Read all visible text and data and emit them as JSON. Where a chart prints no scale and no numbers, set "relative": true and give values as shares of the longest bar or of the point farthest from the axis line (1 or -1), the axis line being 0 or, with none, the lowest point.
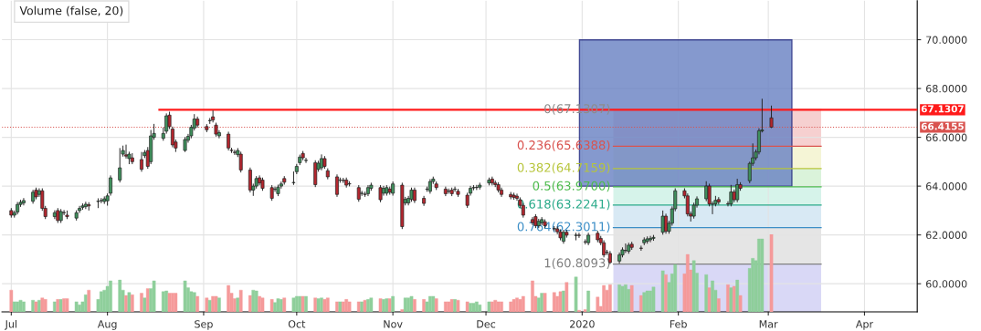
{
  "chart_data": [
    {
      "type": "candlestick",
      "x": [
        "2019-07-01",
        "2019-07-02",
        "2019-07-03",
        "2019-07-04",
        "2019-07-05",
        "2019-07-08",
        "2019-07-09",
        "2019-07-10",
        "2019-07-11",
        "2019-07-12",
        "2019-07-15",
        "2019-07-16",
        "2019-07-17",
        "2019-07-18",
        "2019-07-19",
        "2019-07-22",
        "2019-07-23",
        "2019-07-24",
        "2019-07-25",
        "2019-07-26",
        "2019-07-29",
        "2019-07-30",
        "2019-07-31",
        "2019-08-01",
        "2019-08-02",
        "2019-08-05",
        "2019-08-06",
        "2019-08-07",
        "2019-08-08",
        "2019-08-09",
        "2019-08-12",
        "2019-08-13",
        "2019-08-14",
        "2019-08-15",
        "2019-08-16",
        "2019-08-19",
        "2019-08-20",
        "2019-08-21",
        "2019-08-22",
        "2019-08-23",
        "2019-08-26",
        "2019-08-27",
        "2019-08-28",
        "2019-08-29",
        "2019-08-30",
        "2019-09-02",
        "2019-09-03",
        "2019-09-04",
        "2019-09-05",
        "2019-09-06",
        "2019-09-09",
        "2019-09-10",
        "2019-09-11",
        "2019-09-12",
        "2019-09-13",
        "2019-09-16",
        "2019-09-17",
        "2019-09-18",
        "2019-09-19",
        "2019-09-20",
        "2019-09-23",
        "2019-09-24",
        "2019-09-25",
        "2019-09-26",
        "2019-09-27",
        "2019-09-30",
        "2019-10-01",
        "2019-10-02",
        "2019-10-03",
        "2019-10-04",
        "2019-10-07",
        "2019-10-08",
        "2019-10-09",
        "2019-10-10",
        "2019-10-11",
        "2019-10-14",
        "2019-10-15",
        "2019-10-16",
        "2019-10-17",
        "2019-10-18",
        "2019-10-21",
        "2019-10-22",
        "2019-10-23",
        "2019-10-24",
        "2019-10-25",
        "2019-10-28",
        "2019-10-29",
        "2019-10-30",
        "2019-10-31",
        "2019-11-01",
        "2019-11-04",
        "2019-11-05",
        "2019-11-06",
        "2019-11-07",
        "2019-11-08",
        "2019-11-11",
        "2019-11-12",
        "2019-11-13",
        "2019-11-14",
        "2019-11-15",
        "2019-11-18",
        "2019-11-19",
        "2019-11-20",
        "2019-11-21",
        "2019-11-22",
        "2019-11-25",
        "2019-11-26",
        "2019-11-27",
        "2019-11-28",
        "2019-11-29",
        "2019-12-02",
        "2019-12-03",
        "2019-12-04",
        "2019-12-05",
        "2019-12-06",
        "2019-12-09",
        "2019-12-10",
        "2019-12-11",
        "2019-12-12",
        "2019-12-13",
        "2019-12-16",
        "2019-12-17",
        "2019-12-18",
        "2019-12-19",
        "2019-12-20",
        "2019-12-23",
        "2019-12-24",
        "2019-12-25",
        "2019-12-26",
        "2019-12-27",
        "2019-12-30",
        "2019-12-31",
        "2020-01-02",
        "2020-01-03",
        "2020-01-06",
        "2020-01-07",
        "2020-01-08",
        "2020-01-09",
        "2020-01-10",
        "2020-01-13",
        "2020-01-14",
        "2020-01-15",
        "2020-01-16",
        "2020-01-17",
        "2020-01-20",
        "2020-01-21",
        "2020-01-22",
        "2020-01-23",
        "2020-01-24",
        "2020-01-27",
        "2020-01-28",
        "2020-01-29",
        "2020-01-30",
        "2020-01-31",
        "2020-02-03",
        "2020-02-04",
        "2020-02-05",
        "2020-02-06",
        "2020-02-07",
        "2020-02-10",
        "2020-02-11",
        "2020-02-12",
        "2020-02-13",
        "2020-02-14",
        "2020-02-17",
        "2020-02-18",
        "2020-02-19",
        "2020-02-20",
        "2020-02-21",
        "2020-02-24",
        "2020-02-25",
        "2020-02-26",
        "2020-02-27",
        "2020-02-28",
        "2020-03-02"
      ],
      "ohlc": [
        [
          63.0,
          63.1,
          62.71,
          62.81
        ],
        [
          62.81,
          63.0,
          62.71,
          62.91
        ],
        [
          62.94,
          63.35,
          62.84,
          63.25
        ],
        [
          63.25,
          63.44,
          63.15,
          63.34
        ],
        [
          63.31,
          63.51,
          63.21,
          63.41
        ],
        [
          63.38,
          63.85,
          63.28,
          63.75
        ],
        [
          63.84,
          63.94,
          63.46,
          63.56
        ],
        [
          63.66,
          63.91,
          63.56,
          63.81
        ],
        [
          63.81,
          63.91,
          62.99,
          63.09
        ],
        [
          63.09,
          63.19,
          62.65,
          62.75
        ],
        [
          62.75,
          63.01,
          62.65,
          62.91
        ],
        [
          63.0,
          63.1,
          62.49,
          62.59
        ],
        [
          62.59,
          63.06,
          62.49,
          62.96
        ],
        [
          62.92,
          63.02,
          62.81,
          62.91
        ],
        [
          62.81,
          63.0,
          62.65,
          62.75
        ],
        [
          62.69,
          63.01,
          62.59,
          62.91
        ],
        [
          63.0,
          63.19,
          62.9,
          63.09
        ],
        [
          63.13,
          63.29,
          63.03,
          63.19
        ],
        [
          63.16,
          63.36,
          63.06,
          63.26
        ],
        [
          63.24,
          63.34,
          63.0,
          63.19
        ],
        [
          63.37,
          63.5,
          63.1,
          63.38
        ],
        [
          63.4,
          63.51,
          63.3,
          63.41
        ],
        [
          63.37,
          63.58,
          63.27,
          63.48
        ],
        [
          63.4,
          63.7,
          63.2,
          63.6
        ],
        [
          63.71,
          64.44,
          63.61,
          64.34
        ],
        [
          64.25,
          65.56,
          64.15,
          64.75
        ],
        [
          65.31,
          65.66,
          65.21,
          65.46
        ],
        [
          65.28,
          65.7,
          65.13,
          65.23
        ],
        [
          65.13,
          65.41,
          64.9,
          65.31
        ],
        [
          65.16,
          65.35,
          64.9,
          65.0
        ],
        [
          65.09,
          65.4,
          64.59,
          64.69
        ],
        [
          65.25,
          65.48,
          65.15,
          65.38
        ],
        [
          65.46,
          65.6,
          64.71,
          64.81
        ],
        [
          65.0,
          66.3,
          64.9,
          66.06
        ],
        [
          66.0,
          66.55,
          65.9,
          66.16
        ],
        [
          65.96,
          66.4,
          65.86,
          66.16
        ],
        [
          66.25,
          66.98,
          66.15,
          66.88
        ],
        [
          66.91,
          67.05,
          66.34,
          66.44
        ],
        [
          66.34,
          66.44,
          65.59,
          65.69
        ],
        [
          65.81,
          65.91,
          65.4,
          65.56
        ],
        [
          65.46,
          66.01,
          65.4,
          65.91
        ],
        [
          65.88,
          66.14,
          65.78,
          66.04
        ],
        [
          66.06,
          66.51,
          65.96,
          66.41
        ],
        [
          66.38,
          66.95,
          66.28,
          66.75
        ],
        [
          66.75,
          66.85,
          66.4,
          66.5
        ],
        [
          66.44,
          66.54,
          66.21,
          66.31
        ],
        [
          66.68,
          66.79,
          66.55,
          66.69
        ],
        [
          66.84,
          67.1,
          66.61,
          66.71
        ],
        [
          66.5,
          66.6,
          66.03,
          66.13
        ],
        [
          66.06,
          66.29,
          65.96,
          66.19
        ],
        [
          66.13,
          66.23,
          65.46,
          65.56
        ],
        [
          65.47,
          65.57,
          65.36,
          65.46
        ],
        [
          65.39,
          65.49,
          65.28,
          65.38
        ],
        [
          65.29,
          65.56,
          65.19,
          65.46
        ],
        [
          65.31,
          65.41,
          64.56,
          64.66
        ],
        [
          64.66,
          64.76,
          63.74,
          63.84
        ],
        [
          63.84,
          64.1,
          63.6,
          64.0
        ],
        [
          64.0,
          64.41,
          63.9,
          64.31
        ],
        [
          64.34,
          64.44,
          64.03,
          64.13
        ],
        [
          64.25,
          64.35,
          63.81,
          63.91
        ],
        [
          63.94,
          64.04,
          63.4,
          63.5
        ],
        [
          63.87,
          63.98,
          63.77,
          63.88
        ],
        [
          63.69,
          64.06,
          63.59,
          63.96
        ],
        [
          64.0,
          64.19,
          63.9,
          64.09
        ],
        [
          64.31,
          64.41,
          64.06,
          64.16
        ],
        [
          64.14,
          64.6,
          64.05,
          64.15
        ],
        [
          64.59,
          64.91,
          64.49,
          64.81
        ],
        [
          64.96,
          65.29,
          64.86,
          65.19
        ],
        [
          65.34,
          65.44,
          65.06,
          65.16
        ],
        [
          65.05,
          65.16,
          64.95,
          65.06
        ],
        [
          64.96,
          65.06,
          63.96,
          64.06
        ],
        [
          64.69,
          65.04,
          64.59,
          64.94
        ],
        [
          64.75,
          65.3,
          64.65,
          65.13
        ],
        [
          65.13,
          65.23,
          64.71,
          64.81
        ],
        [
          64.63,
          64.73,
          64.28,
          64.38
        ],
        [
          64.38,
          64.48,
          63.56,
          63.66
        ],
        [
          64.24,
          64.35,
          64.14,
          64.25
        ],
        [
          64.24,
          64.34,
          64.13,
          64.23
        ],
        [
          64.25,
          64.35,
          63.94,
          64.04
        ],
        [
          64.1,
          64.2,
          63.99,
          64.09
        ],
        [
          63.94,
          64.04,
          63.36,
          63.46
        ],
        [
          63.7,
          63.81,
          63.6,
          63.71
        ],
        [
          63.67,
          63.77,
          63.56,
          63.66
        ],
        [
          63.69,
          64.04,
          63.59,
          63.94
        ],
        [
          63.91,
          64.14,
          63.81,
          64.04
        ],
        [
          63.94,
          64.04,
          63.34,
          63.44
        ],
        [
          63.71,
          64.01,
          63.61,
          63.91
        ],
        [
          63.71,
          64.04,
          63.61,
          63.94
        ],
        [
          63.88,
          63.98,
          63.65,
          63.75
        ],
        [
          63.71,
          64.19,
          63.61,
          64.09
        ],
        [
          64.04,
          64.14,
          62.24,
          62.34
        ],
        [
          63.31,
          63.56,
          63.21,
          63.46
        ],
        [
          63.31,
          63.6,
          63.21,
          63.5
        ],
        [
          63.46,
          63.94,
          63.36,
          63.84
        ],
        [
          63.84,
          63.94,
          63.31,
          63.41
        ],
        [
          63.5,
          63.6,
          63.19,
          63.29
        ],
        [
          63.87,
          63.98,
          63.77,
          63.88
        ],
        [
          63.79,
          64.29,
          63.69,
          64.19
        ],
        [
          64.19,
          64.39,
          64.09,
          64.29
        ],
        [
          64.09,
          64.19,
          63.84,
          63.94
        ],
        [
          63.88,
          63.98,
          63.59,
          63.69
        ],
        [
          63.8,
          63.9,
          63.69,
          63.79
        ],
        [
          63.84,
          63.94,
          63.59,
          63.69
        ],
        [
          63.87,
          63.98,
          63.77,
          63.88
        ],
        [
          63.79,
          63.89,
          63.56,
          63.66
        ],
        [
          63.63,
          63.73,
          63.11,
          63.21
        ],
        [
          63.71,
          64.01,
          63.61,
          63.91
        ],
        [
          63.93,
          64.04,
          63.83,
          63.94
        ],
        [
          63.94,
          64.05,
          63.84,
          63.95
        ],
        [
          63.96,
          64.14,
          63.86,
          64.04
        ],
        [
          64.13,
          64.35,
          64.03,
          64.25
        ],
        [
          64.29,
          64.39,
          64.03,
          64.13
        ],
        [
          64.13,
          64.23,
          63.96,
          64.06
        ],
        [
          64.06,
          64.16,
          63.74,
          63.84
        ],
        [
          63.84,
          63.94,
          63.56,
          63.66
        ],
        [
          63.66,
          63.76,
          63.46,
          63.56
        ],
        [
          63.63,
          63.73,
          63.44,
          63.54
        ],
        [
          63.59,
          63.69,
          63.4,
          63.5
        ],
        [
          63.44,
          63.54,
          63.11,
          63.21
        ],
        [
          63.21,
          63.31,
          62.71,
          62.81
        ],
        [
          62.63,
          62.73,
          62.4,
          62.5
        ],
        [
          62.75,
          62.85,
          62.28,
          62.38
        ],
        [
          62.38,
          62.66,
          62.28,
          62.56
        ],
        [
          62.5,
          62.73,
          62.4,
          62.63
        ],
        [
          62.54,
          62.64,
          62.28,
          62.38
        ],
        [
          62.26,
          62.36,
          62.15,
          62.25
        ],
        [
          62.25,
          62.35,
          62.03,
          62.13
        ],
        [
          62.13,
          62.23,
          61.78,
          61.88
        ],
        [
          61.74,
          62.21,
          61.64,
          62.11
        ],
        [
          62.11,
          62.21,
          61.89,
          61.99
        ],
        [
          61.98,
          62.09,
          61.78,
          61.99
        ],
        [
          61.99,
          62.09,
          61.88,
          61.98
        ],
        [
          61.72,
          61.82,
          61.61,
          61.71
        ],
        [
          61.68,
          62.09,
          61.58,
          61.99
        ],
        [
          62.07,
          62.17,
          61.7,
          61.8
        ],
        [
          61.86,
          61.96,
          61.58,
          61.68
        ],
        [
          61.68,
          61.78,
          61.08,
          61.18
        ],
        [
          61.29,
          61.39,
          61.18,
          61.28
        ],
        [
          61.24,
          61.34,
          60.81,
          60.87
        ],
        [
          60.93,
          61.28,
          60.83,
          61.18
        ],
        [
          61.18,
          61.49,
          61.08,
          61.39
        ],
        [
          61.36,
          61.65,
          61.26,
          61.37
        ],
        [
          61.33,
          61.68,
          61.23,
          61.58
        ],
        [
          61.62,
          61.72,
          61.39,
          61.49
        ],
        [
          61.46,
          61.56,
          61.35,
          61.45
        ],
        [
          61.68,
          61.9,
          61.58,
          61.8
        ],
        [
          61.74,
          61.94,
          61.64,
          61.84
        ],
        [
          61.8,
          61.96,
          61.7,
          61.86
        ],
        [
          61.86,
          62.0,
          61.76,
          61.9
        ],
        [
          62.11,
          63.0,
          62.01,
          62.77
        ],
        [
          62.77,
          62.87,
          62.05,
          62.15
        ],
        [
          62.15,
          62.58,
          62.05,
          62.48
        ],
        [
          62.48,
          63.17,
          62.38,
          63.07
        ],
        [
          63.07,
          63.91,
          62.97,
          63.81
        ],
        [
          63.81,
          63.91,
          63.5,
          63.6
        ],
        [
          63.6,
          63.7,
          62.76,
          62.86
        ],
        [
          62.86,
          62.96,
          62.55,
          62.77
        ],
        [
          62.77,
          63.32,
          62.67,
          63.22
        ],
        [
          63.22,
          63.58,
          63.12,
          63.48
        ],
        [
          63.48,
          64.2,
          63.38,
          64.0
        ],
        [
          64.0,
          64.1,
          63.17,
          63.27
        ],
        [
          63.26,
          63.37,
          62.85,
          63.27
        ],
        [
          63.27,
          63.6,
          63.17,
          63.42
        ],
        [
          63.45,
          63.55,
          63.25,
          63.35
        ],
        [
          63.28,
          63.38,
          63.17,
          63.27
        ],
        [
          63.27,
          64.05,
          63.17,
          63.76
        ],
        [
          63.76,
          63.86,
          63.34,
          63.44
        ],
        [
          63.44,
          64.3,
          63.34,
          64.06
        ],
        [
          64.06,
          64.16,
          63.81,
          63.91
        ],
        [
          64.22,
          65.0,
          64.12,
          64.93
        ],
        [
          64.93,
          65.75,
          64.83,
          65.16
        ],
        [
          65.16,
          65.5,
          65.06,
          65.4
        ],
        [
          65.4,
          66.37,
          65.3,
          66.27
        ],
        [
          66.26,
          67.58,
          66.2,
          66.3
        ],
        [
          66.8,
          67.3,
          66.38,
          66.4155
        ]
      ],
      "colors": [
        "#b3262e",
        "#3f8f5c",
        "#3f8f5c",
        "#3f8f5c",
        "#3f8f5c",
        "#3f8f5c",
        "#b3262e",
        "#3f8f5c",
        "#b3262e",
        "#b3262e",
        "#3f8f5c",
        "#b3262e",
        "#3f8f5c",
        "#b3262e",
        "#b3262e",
        "#3f8f5c",
        "#3f8f5c",
        "#3f8f5c",
        "#3f8f5c",
        "#b3262e",
        "#3f8f5c",
        "#3f8f5c",
        "#3f8f5c",
        "#3f8f5c",
        "#3f8f5c",
        "#3f8f5c",
        "#3f8f5c",
        "#b3262e",
        "#3f8f5c",
        "#b3262e",
        "#b3262e",
        "#3f8f5c",
        "#b3262e",
        "#3f8f5c",
        "#3f8f5c",
        "#3f8f5c",
        "#3f8f5c",
        "#b3262e",
        "#b3262e",
        "#b3262e",
        "#3f8f5c",
        "#3f8f5c",
        "#3f8f5c",
        "#3f8f5c",
        "#b3262e",
        "#b3262e",
        "#3f8f5c",
        "#b3262e",
        "#b3262e",
        "#3f8f5c",
        "#b3262e",
        "#b3262e",
        "#b3262e",
        "#3f8f5c",
        "#b3262e",
        "#b3262e",
        "#3f8f5c",
        "#3f8f5c",
        "#b3262e",
        "#b3262e",
        "#b3262e",
        "#3f8f5c",
        "#3f8f5c",
        "#3f8f5c",
        "#b3262e",
        "#3f8f5c",
        "#3f8f5c",
        "#3f8f5c",
        "#b3262e",
        "#3f8f5c",
        "#b3262e",
        "#3f8f5c",
        "#3f8f5c",
        "#b3262e",
        "#b3262e",
        "#b3262e",
        "#3f8f5c",
        "#b3262e",
        "#b3262e",
        "#b3262e",
        "#b3262e",
        "#3f8f5c",
        "#b3262e",
        "#3f8f5c",
        "#3f8f5c",
        "#b3262e",
        "#3f8f5c",
        "#3f8f5c",
        "#b3262e",
        "#3f8f5c",
        "#b3262e",
        "#3f8f5c",
        "#3f8f5c",
        "#3f8f5c",
        "#b3262e",
        "#b3262e",
        "#3f8f5c",
        "#3f8f5c",
        "#3f8f5c",
        "#b3262e",
        "#b3262e",
        "#b3262e",
        "#b3262e",
        "#3f8f5c",
        "#b3262e",
        "#b3262e",
        "#3f8f5c",
        "#3f8f5c",
        "#3f8f5c",
        "#3f8f5c",
        "#3f8f5c",
        "#b3262e",
        "#b3262e",
        "#b3262e",
        "#b3262e",
        "#b3262e",
        "#b3262e",
        "#b3262e",
        "#b3262e",
        "#b3262e",
        "#b3262e",
        "#b3262e",
        "#3f8f5c",
        "#3f8f5c",
        "#b3262e",
        "#b3262e",
        "#b3262e",
        "#b3262e",
        "#3f8f5c",
        "#b3262e",
        "#3f8f5c",
        "#b3262e",
        "#b3262e",
        "#3f8f5c",
        "#b3262e",
        "#b3262e",
        "#b3262e",
        "#b3262e",
        "#b3262e",
        "#3f8f5c",
        "#3f8f5c",
        "#3f8f5c",
        "#3f8f5c",
        "#b3262e",
        "#b3262e",
        "#3f8f5c",
        "#3f8f5c",
        "#3f8f5c",
        "#3f8f5c",
        "#3f8f5c",
        "#b3262e",
        "#3f8f5c",
        "#3f8f5c",
        "#3f8f5c",
        "#b3262e",
        "#b3262e",
        "#b3262e",
        "#3f8f5c",
        "#3f8f5c",
        "#3f8f5c",
        "#b3262e",
        "#3f8f5c",
        "#3f8f5c",
        "#b3262e",
        "#b3262e",
        "#3f8f5c",
        "#b3262e",
        "#3f8f5c",
        "#b3262e",
        "#3f8f5c",
        "#3f8f5c",
        "#3f8f5c",
        "#3f8f5c",
        "#3f8f5c",
        "#b3262e"
      ],
      "xlim": [
        "2019-06-28",
        "2020-04-18"
      ],
      "xticks": [
        {
          "value": "2019-07-01",
          "label": "Jul"
        },
        {
          "value": "2019-08-01",
          "label": "Aug"
        },
        {
          "value": "2019-09-01",
          "label": "Sep"
        },
        {
          "value": "2019-10-01",
          "label": "Oct"
        },
        {
          "value": "2019-11-01",
          "label": "Nov"
        },
        {
          "value": "2019-12-01",
          "label": "Dec"
        },
        {
          "value": "2020-01-01",
          "label": "2020"
        },
        {
          "value": "2020-02-01",
          "label": "Feb"
        },
        {
          "value": "2020-03-01",
          "label": "Mar"
        },
        {
          "value": "2020-04-01",
          "label": "Apr"
        }
      ],
      "ylim": [
        58.85,
        71.6
      ],
      "yticks": [
        {
          "value": 60,
          "label": "60.0000"
        },
        {
          "value": 62,
          "label": "62.0000"
        },
        {
          "value": 64,
          "label": "64.0000"
        },
        {
          "value": 66,
          "label": "66.0000"
        },
        {
          "value": 68,
          "label": "68.0000"
        },
        {
          "value": 70,
          "label": "70.0000"
        }
      ],
      "grid": true,
      "ref_lines": [
        {
          "axis": "y",
          "value": 67.1307,
          "label": "67.1307",
          "color": "#ff1a1a",
          "line_style": "solid"
        },
        {
          "axis": "y",
          "value": 66.4155,
          "label": "66.4155",
          "color": "#d9534f",
          "line_style": "dotted"
        },
        {
          "axis": "y",
          "value": 67.1307,
          "label": "0(67.1307)",
          "color": "#8c8c8c",
          "line_style": "solid"
        },
        {
          "axis": "y",
          "value": 65.6388,
          "label": "0.236(65.6388)",
          "color": "#d9534f",
          "line_style": "solid"
        },
        {
          "axis": "y",
          "value": 64.7159,
          "label": "0.382(64.7159)",
          "color": "#b7c53a",
          "line_style": "solid"
        },
        {
          "axis": "y",
          "value": 63.97,
          "label": "0.5(63.9700)",
          "color": "#4cbb4c",
          "line_style": "solid"
        },
        {
          "axis": "y",
          "value": 63.2241,
          "label": "0.618(63.2241)",
          "color": "#2aaa8a",
          "line_style": "solid"
        },
        {
          "axis": "y",
          "value": 62.3011,
          "label": "0.764(62.3011)",
          "color": "#3d8fc7",
          "line_style": "solid"
        },
        {
          "axis": "y",
          "value": 60.8093,
          "label": "1(60.8093)",
          "color": "#808080",
          "line_style": "solid"
        }
      ],
      "bands": [
        {
          "axis": "y",
          "from": 65.6388,
          "to": 67.1307,
          "color": "#f6d0d0"
        },
        {
          "axis": "y",
          "from": 64.7159,
          "to": 65.6388,
          "color": "#f5f5d6"
        },
        {
          "axis": "y",
          "from": 63.97,
          "to": 64.7159,
          "color": "#daf3da"
        },
        {
          "axis": "y",
          "from": 63.2241,
          "to": 63.97,
          "color": "#d6f3ea"
        },
        {
          "axis": "y",
          "from": 62.3011,
          "to": 63.2241,
          "color": "#d8e9f4"
        },
        {
          "axis": "y",
          "from": 60.8093,
          "to": 62.3011,
          "color": "#e5e5e5"
        },
        {
          "axis": "y",
          "from": 58.85,
          "to": 60.8093,
          "color": "#d9d8f6"
        }
      ]
    },
    {
      "type": "bar",
      "title": "Volume (false, 20)",
      "relative": true,
      "tick_labels": false,
      "x": [
        "2019-07-01",
        "2019-07-02",
        "2019-07-03",
        "2019-07-04",
        "2019-07-05",
        "2019-07-08",
        "2019-07-09",
        "2019-07-10",
        "2019-07-11",
        "2019-07-12",
        "2019-07-15",
        "2019-07-16",
        "2019-07-17",
        "2019-07-18",
        "2019-07-19",
        "2019-07-22",
        "2019-07-23",
        "2019-07-24",
        "2019-07-25",
        "2019-07-26",
        "2019-07-29",
        "2019-07-30",
        "2019-07-31",
        "2019-08-01",
        "2019-08-02",
        "2019-08-05",
        "2019-08-06",
        "2019-08-07",
        "2019-08-08",
        "2019-08-09",
        "2019-08-12",
        "2019-08-13",
        "2019-08-14",
        "2019-08-15",
        "2019-08-16",
        "2019-08-19",
        "2019-08-20",
        "2019-08-21",
        "2019-08-22",
        "2019-08-23",
        "2019-08-26",
        "2019-08-27",
        "2019-08-28",
        "2019-08-29",
        "2019-08-30",
        "2019-09-02",
        "2019-09-03",
        "2019-09-04",
        "2019-09-05",
        "2019-09-06",
        "2019-09-09",
        "2019-09-10",
        "2019-09-11",
        "2019-09-12",
        "2019-09-13",
        "2019-09-16",
        "2019-09-17",
        "2019-09-18",
        "2019-09-19",
        "2019-09-20",
        "2019-09-23",
        "2019-09-24",
        "2019-09-25",
        "2019-09-26",
        "2019-09-27",
        "2019-09-30",
        "2019-10-01",
        "2019-10-02",
        "2019-10-03",
        "2019-10-04",
        "2019-10-07",
        "2019-10-08",
        "2019-10-09",
        "2019-10-10",
        "2019-10-11",
        "2019-10-14",
        "2019-10-15",
        "2019-10-16",
        "2019-10-17",
        "2019-10-18",
        "2019-10-21",
        "2019-10-22",
        "2019-10-23",
        "2019-10-24",
        "2019-10-25",
        "2019-10-28",
        "2019-10-29",
        "2019-10-30",
        "2019-10-31",
        "2019-11-01",
        "2019-11-04",
        "2019-11-05",
        "2019-11-06",
        "2019-11-07",
        "2019-11-08",
        "2019-11-11",
        "2019-11-12",
        "2019-11-13",
        "2019-11-14",
        "2019-11-15",
        "2019-11-18",
        "2019-11-19",
        "2019-11-20",
        "2019-11-21",
        "2019-11-22",
        "2019-11-25",
        "2019-11-26",
        "2019-11-27",
        "2019-11-28",
        "2019-11-29",
        "2019-12-02",
        "2019-12-03",
        "2019-12-04",
        "2019-12-05",
        "2019-12-06",
        "2019-12-09",
        "2019-12-10",
        "2019-12-11",
        "2019-12-12",
        "2019-12-13",
        "2019-12-16",
        "2019-12-17",
        "2019-12-18",
        "2019-12-19",
        "2019-12-20",
        "2019-12-23",
        "2019-12-24",
        "2019-12-25",
        "2019-12-26",
        "2019-12-27",
        "2019-12-30",
        "2019-12-31",
        "2020-01-02",
        "2020-01-03",
        "2020-01-06",
        "2020-01-07",
        "2020-01-08",
        "2020-01-09",
        "2020-01-10",
        "2020-01-13",
        "2020-01-14",
        "2020-01-15",
        "2020-01-16",
        "2020-01-17",
        "2020-01-20",
        "2020-01-21",
        "2020-01-22",
        "2020-01-23",
        "2020-01-24",
        "2020-01-27",
        "2020-01-28",
        "2020-01-29",
        "2020-01-30",
        "2020-01-31",
        "2020-02-03",
        "2020-02-04",
        "2020-02-05",
        "2020-02-06",
        "2020-02-07",
        "2020-02-10",
        "2020-02-11",
        "2020-02-12",
        "2020-02-13",
        "2020-02-14",
        "2020-02-17",
        "2020-02-18",
        "2020-02-19",
        "2020-02-20",
        "2020-02-21",
        "2020-02-24",
        "2020-02-25",
        "2020-02-26",
        "2020-02-27",
        "2020-02-28",
        "2020-03-02"
      ],
      "values": [
        0.28,
        0.13,
        0.13,
        0.15,
        0.13,
        0.15,
        0.13,
        0.15,
        0.18,
        0.16,
        0.13,
        0.16,
        0.16,
        0.17,
        0.17,
        0.13,
        0.09,
        0.13,
        0.22,
        0.28,
        0.16,
        0.26,
        0.28,
        0.33,
        0.4,
        0.41,
        0.28,
        0.21,
        0.25,
        0.22,
        0.24,
        0.18,
        0.3,
        0.3,
        0.4,
        0.26,
        0.27,
        0.24,
        0.24,
        0.24,
        0.4,
        0.31,
        0.26,
        0.25,
        0.2,
        0.18,
        0.15,
        0.2,
        0.2,
        0.18,
        0.34,
        0.24,
        0.17,
        0.18,
        0.28,
        0.21,
        0.28,
        0.27,
        0.2,
        0.18,
        0.16,
        0.12,
        0.17,
        0.16,
        0.18,
        0.18,
        0.2,
        0.2,
        0.2,
        0.2,
        0.18,
        0.17,
        0.18,
        0.16,
        0.18,
        0.13,
        0.13,
        0.13,
        0.16,
        0.13,
        0.13,
        0.13,
        0.15,
        0.16,
        0.18,
        0.17,
        0.16,
        0.17,
        0.17,
        0.2,
        0.03,
        0.18,
        0.18,
        0.2,
        0.16,
        0.16,
        0.13,
        0.2,
        0.2,
        0.17,
        0.13,
        0.13,
        0.16,
        0.16,
        0.15,
        0.13,
        0.11,
        0.11,
        0.13,
        0.09,
        0.13,
        0.13,
        0.15,
        0.13,
        0.13,
        0.13,
        0.16,
        0.18,
        0.16,
        0.2,
        0.4,
        0.2,
        0.18,
        0.24,
        0.24,
        0.25,
        0.2,
        0.26,
        0.27,
        0.38,
        0.45,
        0.02,
        0.03,
        0.27,
        0.19,
        0.07,
        0.34,
        0.28,
        0.35,
        0.35,
        0.33,
        0.35,
        0.29,
        0.34,
        0.21,
        0.25,
        0.27,
        0.27,
        0.32,
        0.53,
        0.48,
        0.38,
        0.49,
        0.61,
        0.49,
        0.74,
        0.54,
        0.66,
        0.5,
        0.48,
        0.31,
        0.4,
        0.28,
        0.17,
        0.35,
        0.31,
        0.33,
        0.41,
        0.21,
        0.56,
        0.69,
        0.66,
        0.94,
        0.94,
        1
      ],
      "colors": [
        "#f59a9a",
        "#8fcf9b",
        "#8fcf9b",
        "#8fcf9b",
        "#8fcf9b",
        "#8fcf9b",
        "#f59a9a",
        "#8fcf9b",
        "#f59a9a",
        "#f59a9a",
        "#8fcf9b",
        "#f59a9a",
        "#8fcf9b",
        "#f59a9a",
        "#f59a9a",
        "#8fcf9b",
        "#8fcf9b",
        "#8fcf9b",
        "#8fcf9b",
        "#f59a9a",
        "#8fcf9b",
        "#8fcf9b",
        "#8fcf9b",
        "#8fcf9b",
        "#8fcf9b",
        "#8fcf9b",
        "#8fcf9b",
        "#f59a9a",
        "#8fcf9b",
        "#f59a9a",
        "#f59a9a",
        "#8fcf9b",
        "#f59a9a",
        "#8fcf9b",
        "#8fcf9b",
        "#8fcf9b",
        "#8fcf9b",
        "#f59a9a",
        "#f59a9a",
        "#f59a9a",
        "#8fcf9b",
        "#8fcf9b",
        "#8fcf9b",
        "#8fcf9b",
        "#f59a9a",
        "#f59a9a",
        "#8fcf9b",
        "#f59a9a",
        "#f59a9a",
        "#8fcf9b",
        "#f59a9a",
        "#f59a9a",
        "#f59a9a",
        "#8fcf9b",
        "#f59a9a",
        "#f59a9a",
        "#8fcf9b",
        "#8fcf9b",
        "#f59a9a",
        "#f59a9a",
        "#f59a9a",
        "#8fcf9b",
        "#8fcf9b",
        "#8fcf9b",
        "#f59a9a",
        "#8fcf9b",
        "#8fcf9b",
        "#8fcf9b",
        "#f59a9a",
        "#8fcf9b",
        "#f59a9a",
        "#8fcf9b",
        "#8fcf9b",
        "#f59a9a",
        "#f59a9a",
        "#f59a9a",
        "#8fcf9b",
        "#f59a9a",
        "#f59a9a",
        "#f59a9a",
        "#f59a9a",
        "#8fcf9b",
        "#f59a9a",
        "#8fcf9b",
        "#8fcf9b",
        "#f59a9a",
        "#8fcf9b",
        "#8fcf9b",
        "#f59a9a",
        "#8fcf9b",
        "#f59a9a",
        "#8fcf9b",
        "#8fcf9b",
        "#8fcf9b",
        "#f59a9a",
        "#f59a9a",
        "#8fcf9b",
        "#8fcf9b",
        "#8fcf9b",
        "#f59a9a",
        "#f59a9a",
        "#f59a9a",
        "#f59a9a",
        "#8fcf9b",
        "#f59a9a",
        "#f59a9a",
        "#8fcf9b",
        "#8fcf9b",
        "#8fcf9b",
        "#8fcf9b",
        "#8fcf9b",
        "#f59a9a",
        "#f59a9a",
        "#f59a9a",
        "#f59a9a",
        "#f59a9a",
        "#f59a9a",
        "#f59a9a",
        "#f59a9a",
        "#f59a9a",
        "#f59a9a",
        "#f59a9a",
        "#8fcf9b",
        "#8fcf9b",
        "#f59a9a",
        "#f59a9a",
        "#f59a9a",
        "#f59a9a",
        "#8fcf9b",
        "#f59a9a",
        "#8fcf9b",
        "#f59a9a",
        "#f59a9a",
        "#8fcf9b",
        "#f59a9a",
        "#f59a9a",
        "#f59a9a",
        "#f59a9a",
        "#f59a9a",
        "#8fcf9b",
        "#8fcf9b",
        "#8fcf9b",
        "#8fcf9b",
        "#f59a9a",
        "#f59a9a",
        "#8fcf9b",
        "#8fcf9b",
        "#8fcf9b",
        "#8fcf9b",
        "#8fcf9b",
        "#f59a9a",
        "#8fcf9b",
        "#8fcf9b",
        "#8fcf9b",
        "#f59a9a",
        "#f59a9a",
        "#f59a9a",
        "#8fcf9b",
        "#8fcf9b",
        "#8fcf9b",
        "#f59a9a",
        "#8fcf9b",
        "#8fcf9b",
        "#f59a9a",
        "#f59a9a",
        "#8fcf9b",
        "#f59a9a",
        "#8fcf9b",
        "#f59a9a",
        "#8fcf9b",
        "#8fcf9b",
        "#8fcf9b",
        "#8fcf9b",
        "#8fcf9b",
        "#f59a9a"
      ],
      "xlim": [
        "2019-06-28",
        "2020-04-18"
      ]
    }
  ]
}
